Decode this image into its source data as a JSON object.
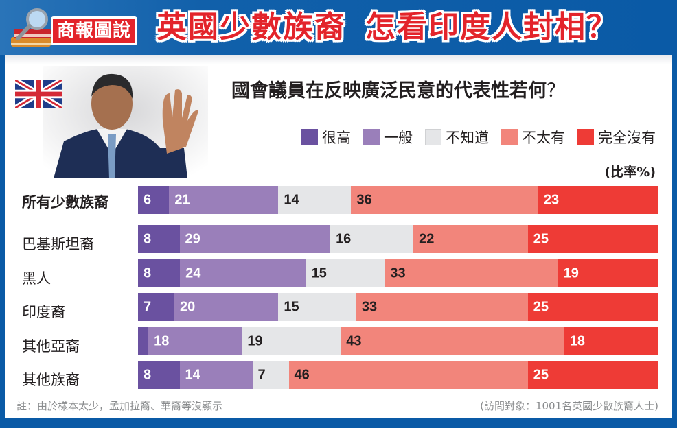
{
  "header": {
    "badge": "商報圖說",
    "title_part1": "英國少數族裔",
    "title_part2": "怎看印度人封相？"
  },
  "question": {
    "title": "國會議員在反映廣泛民意的代表性若何",
    "qmark": "？"
  },
  "unit": "(比率%)",
  "colors": {
    "very_high": "#6a51a0",
    "average": "#9a7fba",
    "dont_know": "#e5e6e8",
    "not_much": "#f2857b",
    "none_at_all": "#ee3b36",
    "header_blue": "#0a5aa6",
    "title_red": "#e3242b"
  },
  "legend": [
    {
      "label": "很高",
      "color": "#6a51a0"
    },
    {
      "label": "一般",
      "color": "#9a7fba"
    },
    {
      "label": "不知道",
      "color": "#e5e6e8"
    },
    {
      "label": "不太有",
      "color": "#f2857b"
    },
    {
      "label": "完全沒有",
      "color": "#ee3b36"
    }
  ],
  "chart_data": {
    "type": "bar",
    "orientation": "horizontal",
    "stacked": true,
    "title": "國會議員在反映廣泛民意的代表性若何？",
    "xlabel": "",
    "ylabel": "",
    "unit": "比率%",
    "legend_position": "top-right",
    "grid": false,
    "categories": [
      "所有少數族裔",
      "巴基斯坦裔",
      "黑人",
      "印度裔",
      "其他亞裔",
      "其他族裔"
    ],
    "series": [
      {
        "name": "很高",
        "values": [
          6,
          8,
          8,
          7,
          2,
          8
        ],
        "labels": [
          "6",
          "8",
          "8",
          "7",
          "",
          "8"
        ]
      },
      {
        "name": "一般",
        "values": [
          21,
          29,
          24,
          20,
          18,
          14
        ],
        "labels": [
          "21",
          "29",
          "24",
          "20",
          "18",
          "14"
        ]
      },
      {
        "name": "不知道",
        "values": [
          14,
          16,
          15,
          15,
          19,
          7
        ],
        "labels": [
          "14",
          "16",
          "15",
          "15",
          "19",
          "7"
        ]
      },
      {
        "name": "不太有",
        "values": [
          36,
          22,
          33,
          33,
          43,
          46
        ],
        "labels": [
          "36",
          "22",
          "33",
          "33",
          "43",
          "46"
        ]
      },
      {
        "name": "完全沒有",
        "values": [
          23,
          25,
          19,
          25,
          18,
          25
        ],
        "labels": [
          "23",
          "25",
          "19",
          "25",
          "18",
          "25"
        ]
      }
    ]
  },
  "rows": [
    {
      "label": "所有少數族裔",
      "bold": true
    },
    {
      "label": "巴基斯坦裔"
    },
    {
      "label": "黑人"
    },
    {
      "label": "印度裔"
    },
    {
      "label": "其他亞裔"
    },
    {
      "label": "其他族裔"
    }
  ],
  "footer": {
    "note": "註：由於樣本太少，孟加拉裔、華裔等沒顯示",
    "source": "(訪問對象：1001名英國少數族裔人士)"
  }
}
